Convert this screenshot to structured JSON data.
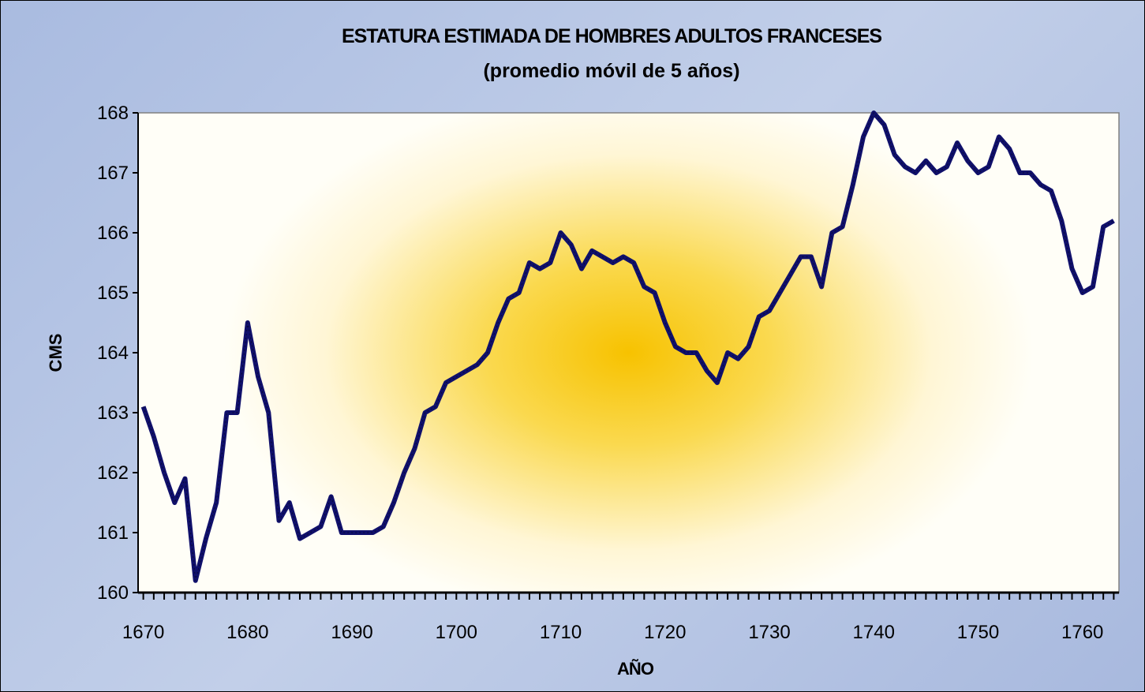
{
  "chart_data": {
    "type": "line",
    "title": "ESTATURA ESTIMADA DE HOMBRES ADULTOS FRANCESES",
    "subtitle": "(promedio móvil de 5 años)",
    "x_label": "AÑO",
    "y_label": "CMS",
    "x": [
      1670,
      1671,
      1672,
      1673,
      1674,
      1675,
      1676,
      1677,
      1678,
      1679,
      1680,
      1681,
      1682,
      1683,
      1684,
      1685,
      1686,
      1687,
      1688,
      1689,
      1690,
      1691,
      1692,
      1693,
      1694,
      1695,
      1696,
      1697,
      1698,
      1699,
      1700,
      1701,
      1702,
      1703,
      1704,
      1705,
      1706,
      1707,
      1708,
      1709,
      1710,
      1711,
      1712,
      1713,
      1714,
      1715,
      1716,
      1717,
      1718,
      1719,
      1720,
      1721,
      1722,
      1723,
      1724,
      1725,
      1726,
      1727,
      1728,
      1729,
      1730,
      1731,
      1732,
      1733,
      1734,
      1735,
      1736,
      1737,
      1738,
      1739,
      1740,
      1741,
      1742,
      1743,
      1744,
      1745,
      1746,
      1747,
      1748,
      1749,
      1750,
      1751,
      1752,
      1753,
      1754,
      1755,
      1756,
      1757,
      1758,
      1759,
      1760,
      1761,
      1762,
      1763
    ],
    "series": [
      {
        "name": "Estatura",
        "color": "#10106b",
        "values": [
          163.1,
          162.6,
          162.0,
          161.5,
          161.9,
          160.2,
          160.9,
          161.5,
          163.0,
          163.0,
          164.5,
          163.6,
          163.0,
          161.2,
          161.5,
          160.9,
          161.0,
          161.1,
          161.6,
          161.0,
          161.0,
          161.0,
          161.0,
          161.1,
          161.5,
          162.0,
          162.4,
          163.0,
          163.1,
          163.5,
          163.6,
          163.7,
          163.8,
          164.0,
          164.5,
          164.9,
          165.0,
          165.5,
          165.4,
          165.5,
          166.0,
          165.8,
          165.4,
          165.7,
          165.6,
          165.5,
          165.6,
          165.5,
          165.1,
          165.0,
          164.5,
          164.1,
          164.0,
          164.0,
          163.7,
          163.5,
          164.0,
          163.9,
          164.1,
          164.6,
          164.7,
          165.0,
          165.3,
          165.6,
          165.6,
          165.1,
          166.0,
          166.1,
          166.8,
          167.6,
          168.0,
          167.8,
          167.3,
          167.1,
          167.0,
          167.2,
          167.0,
          167.1,
          167.5,
          167.2,
          167.0,
          167.1,
          167.6,
          167.4,
          167.0,
          167.0,
          166.8,
          166.7,
          166.2,
          165.4,
          165.0,
          165.1,
          166.1,
          166.2
        ]
      }
    ],
    "xlim": [
      1669.5,
      1763.5
    ],
    "xticks": [
      1670,
      1680,
      1690,
      1700,
      1710,
      1720,
      1730,
      1740,
      1750,
      1760
    ],
    "ylim": [
      160,
      168
    ],
    "yticks": [
      160,
      161,
      162,
      163,
      164,
      165,
      166,
      167,
      168
    ]
  }
}
